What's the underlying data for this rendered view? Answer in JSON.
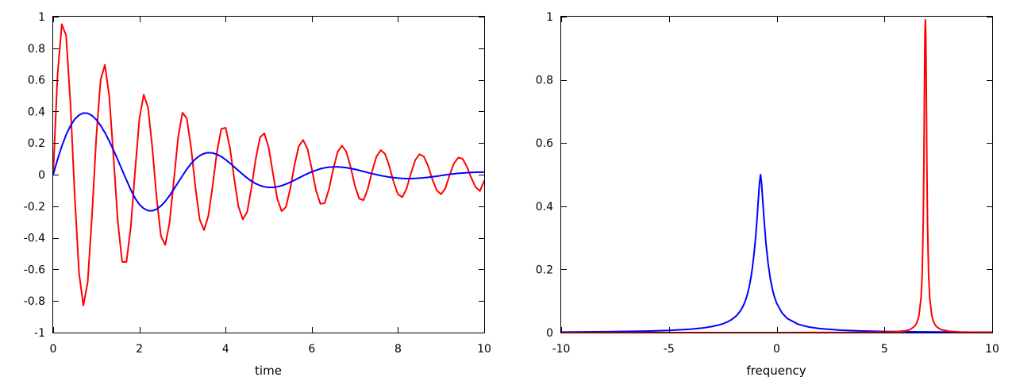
{
  "chart_data": [
    {
      "type": "line",
      "title": "",
      "xlabel": "time",
      "ylabel": "",
      "xlim": [
        0,
        10
      ],
      "ylim": [
        -1,
        1
      ],
      "xticks": [
        0,
        2,
        4,
        6,
        8,
        10
      ],
      "yticks": [
        -1,
        -0.8,
        -0.6,
        -0.4,
        -0.2,
        0,
        0.2,
        0.4,
        0.6,
        0.8,
        1
      ],
      "xtick_labels": [
        "0",
        "2",
        "4",
        "6",
        "8",
        "10"
      ],
      "ytick_labels": [
        "-1",
        "-0.8",
        "-0.6",
        "-0.4",
        "-0.2",
        "0",
        "0.2",
        "0.4",
        "0.6",
        "0.8",
        "1"
      ],
      "grid": false,
      "series": [
        {
          "color": "#ff0000",
          "x": [
            0,
            0.1,
            0.2,
            0.3,
            0.4,
            0.5,
            0.6,
            0.7,
            0.8,
            0.9,
            1,
            1.1,
            1.2,
            1.3,
            1.4,
            1.5,
            1.6,
            1.7,
            1.8,
            1.9,
            2,
            2.1,
            2.2,
            2.3,
            2.4,
            2.5,
            2.6,
            2.7,
            2.8,
            2.9,
            3,
            3.1,
            3.2,
            3.3,
            3.4,
            3.5,
            3.6,
            3.7,
            3.8,
            3.9,
            4,
            4.1,
            4.2,
            4.3,
            4.4,
            4.5,
            4.6,
            4.7,
            4.8,
            4.9,
            5,
            5.1,
            5.2,
            5.3,
            5.4,
            5.5,
            5.6,
            5.7,
            5.8,
            5.9,
            6,
            6.1,
            6.2,
            6.3,
            6.4,
            6.5,
            6.6,
            6.7,
            6.8,
            6.9,
            7,
            7.1,
            7.2,
            7.3,
            7.4,
            7.5,
            7.6,
            7.7,
            7.8,
            7.9,
            8,
            8.1,
            8.2,
            8.3,
            8.4,
            8.5,
            8.6,
            8.7,
            8.8,
            8.9,
            9,
            9.1,
            9.2,
            9.3,
            9.4,
            9.5,
            9.6,
            9.7,
            9.8,
            9.9,
            10
          ],
          "y": [
            0,
            0.627,
            0.952,
            0.881,
            0.451,
            -0.135,
            -0.623,
            -0.829,
            -0.683,
            -0.263,
            0.236,
            0.599,
            0.695,
            0.499,
            0.11,
            -0.3,
            -0.552,
            -0.553,
            -0.333,
            0.021,
            0.353,
            0.506,
            0.427,
            0.172,
            -0.148,
            -0.389,
            -0.445,
            -0.304,
            -0.037,
            0.238,
            0.392,
            0.356,
            0.171,
            -0.08,
            -0.285,
            -0.351,
            -0.261,
            -0.07,
            0.144,
            0.289,
            0.297,
            0.172,
            -0.025,
            -0.204,
            -0.283,
            -0.237,
            -0.085,
            0.1,
            0.236,
            0.261,
            0.171,
            0.007,
            -0.153,
            -0.231,
            -0.205,
            -0.089,
            0.062,
            0.181,
            0.219,
            0.163,
            0.036,
            -0.102,
            -0.185,
            -0.18,
            -0.09,
            0.037,
            0.144,
            0.183,
            0.146,
            0.05,
            -0.07,
            -0.152,
            -0.162,
            -0.09,
            0.021,
            0.114,
            0.155,
            0.131,
            0.053,
            -0.048,
            -0.124,
            -0.143,
            -0.088,
            0.008,
            0.092,
            0.129,
            0.114,
            0.054,
            -0.032,
            -0.1,
            -0.124,
            -0.086,
            -0.001,
            0.072,
            0.108,
            0.1,
            0.05,
            -0.02,
            -0.079,
            -0.104,
            -0.04
          ]
        },
        {
          "color": "#0000ff",
          "x": [
            0,
            0.1,
            0.2,
            0.3,
            0.4,
            0.5,
            0.6,
            0.7,
            0.8,
            0.9,
            1,
            1.1,
            1.2,
            1.3,
            1.4,
            1.5,
            1.6,
            1.7,
            1.8,
            1.9,
            2,
            2.1,
            2.2,
            2.3,
            2.4,
            2.5,
            2.6,
            2.7,
            2.8,
            2.9,
            3,
            3.1,
            3.2,
            3.3,
            3.4,
            3.5,
            3.6,
            3.7,
            3.8,
            3.9,
            4,
            4.1,
            4.2,
            4.3,
            4.4,
            4.5,
            4.6,
            4.7,
            4.8,
            4.9,
            5,
            5.1,
            5.2,
            5.3,
            5.4,
            5.5,
            5.6,
            5.7,
            5.8,
            5.9,
            6,
            6.1,
            6.2,
            6.3,
            6.4,
            6.5,
            6.6,
            6.7,
            6.8,
            6.9,
            7,
            7.1,
            7.2,
            7.3,
            7.4,
            7.5,
            7.6,
            7.7,
            7.8,
            7.9,
            8,
            8.1,
            8.2,
            8.3,
            8.4,
            8.5,
            8.6,
            8.7,
            8.8,
            8.9,
            9,
            9.1,
            9.2,
            9.3,
            9.4,
            9.5,
            9.6,
            9.7,
            9.8,
            9.9,
            10
          ],
          "y": [
            0,
            0.095,
            0.18,
            0.252,
            0.309,
            0.351,
            0.377,
            0.39,
            0.388,
            0.374,
            0.348,
            0.311,
            0.266,
            0.213,
            0.155,
            0.093,
            0.029,
            -0.034,
            -0.095,
            -0.149,
            -0.189,
            -0.214,
            -0.228,
            -0.229,
            -0.219,
            -0.198,
            -0.169,
            -0.133,
            -0.092,
            -0.049,
            -0.007,
            0.034,
            0.07,
            0.099,
            0.12,
            0.134,
            0.139,
            0.137,
            0.128,
            0.114,
            0.095,
            0.073,
            0.049,
            0.025,
            0.001,
            -0.021,
            -0.041,
            -0.057,
            -0.069,
            -0.077,
            -0.081,
            -0.081,
            -0.077,
            -0.07,
            -0.06,
            -0.048,
            -0.035,
            -0.021,
            -0.007,
            0.006,
            0.018,
            0.028,
            0.037,
            0.043,
            0.047,
            0.049,
            0.049,
            0.047,
            0.044,
            0.039,
            0.034,
            0.027,
            0.02,
            0.013,
            0.006,
            0,
            -0.006,
            -0.011,
            -0.016,
            -0.019,
            -0.022,
            -0.024,
            -0.025,
            -0.025,
            -0.024,
            -0.022,
            -0.02,
            -0.017,
            -0.014,
            -0.01,
            -0.006,
            -0.002,
            0.002,
            0.005,
            0.008,
            0.01,
            0.012,
            0.014,
            0.015,
            0.016,
            0.016
          ]
        }
      ]
    },
    {
      "type": "line",
      "title": "",
      "xlabel": "frequency",
      "ylabel": "",
      "xlim": [
        -10,
        10
      ],
      "ylim": [
        0,
        1
      ],
      "xticks": [
        -10,
        -5,
        0,
        5,
        10
      ],
      "yticks": [
        0,
        0.2,
        0.4,
        0.6,
        0.8,
        1
      ],
      "xtick_labels": [
        "-10",
        "-5",
        "0",
        "5",
        "10"
      ],
      "ytick_labels": [
        "0",
        "0.2",
        "0.4",
        "0.6",
        "0.8",
        "1"
      ],
      "grid": false,
      "series": [
        {
          "color": "#0000ff",
          "x": [
            -10,
            -8,
            -6,
            -5,
            -4,
            -3.5,
            -3,
            -2.7,
            -2.5,
            -2.3,
            -2.1,
            -1.9,
            -1.8,
            -1.7,
            -1.6,
            -1.5,
            -1.45,
            -1.4,
            -1.35,
            -1.3,
            -1.25,
            -1.2,
            -1.15,
            -1.1,
            -1.05,
            -1.0,
            -0.95,
            -0.9,
            -0.85,
            -0.8,
            -0.75,
            -0.7,
            -0.65,
            -0.6,
            -0.5,
            -0.4,
            -0.3,
            -0.2,
            -0.1,
            0,
            0.25,
            0.5,
            1,
            1.5,
            2,
            3,
            4,
            5,
            6,
            7,
            8,
            9,
            10
          ],
          "y": [
            0.0017,
            0.0027,
            0.0048,
            0.0069,
            0.0107,
            0.014,
            0.0191,
            0.0237,
            0.0278,
            0.0333,
            0.0407,
            0.0513,
            0.0583,
            0.0671,
            0.0783,
            0.0928,
            0.1017,
            0.1118,
            0.1237,
            0.1374,
            0.1535,
            0.1722,
            0.1942,
            0.2199,
            0.25,
            0.2849,
            0.325,
            0.3713,
            0.4219,
            0.472,
            0.5,
            0.472,
            0.4219,
            0.3713,
            0.2849,
            0.2199,
            0.1722,
            0.1374,
            0.1118,
            0.0928,
            0.062,
            0.0442,
            0.0262,
            0.0175,
            0.0126,
            0.0075,
            0.005,
            0.0036,
            0.0027,
            0.0021,
            0.0017,
            0.0014,
            0.0011
          ]
        },
        {
          "color": "#ff0000",
          "x": [
            -10,
            -8,
            -6,
            -4,
            -2,
            0,
            2,
            3,
            4,
            4.5,
            5,
            5.5,
            6,
            6.2,
            6.4,
            6.5,
            6.6,
            6.7,
            6.75,
            6.8,
            6.83,
            6.86,
            6.88,
            6.9,
            6.92,
            6.94,
            6.97,
            7.0,
            7.05,
            7.1,
            7.2,
            7.3,
            7.4,
            7.6,
            8,
            8.5,
            9,
            10
          ],
          "y": [
            0.0,
            0.0,
            0.0,
            0.0,
            0.0001,
            0.0001,
            0.0002,
            0.0004,
            0.0006,
            0.0009,
            0.0013,
            0.0024,
            0.0061,
            0.0098,
            0.0198,
            0.0307,
            0.0526,
            0.1106,
            0.1818,
            0.3448,
            0.5263,
            0.8,
            0.9434,
            0.9901,
            0.9434,
            0.8,
            0.5263,
            0.3448,
            0.1818,
            0.1106,
            0.0526,
            0.0307,
            0.0198,
            0.0098,
            0.0041,
            0.002,
            0.0012,
            0.0006
          ]
        }
      ]
    }
  ]
}
